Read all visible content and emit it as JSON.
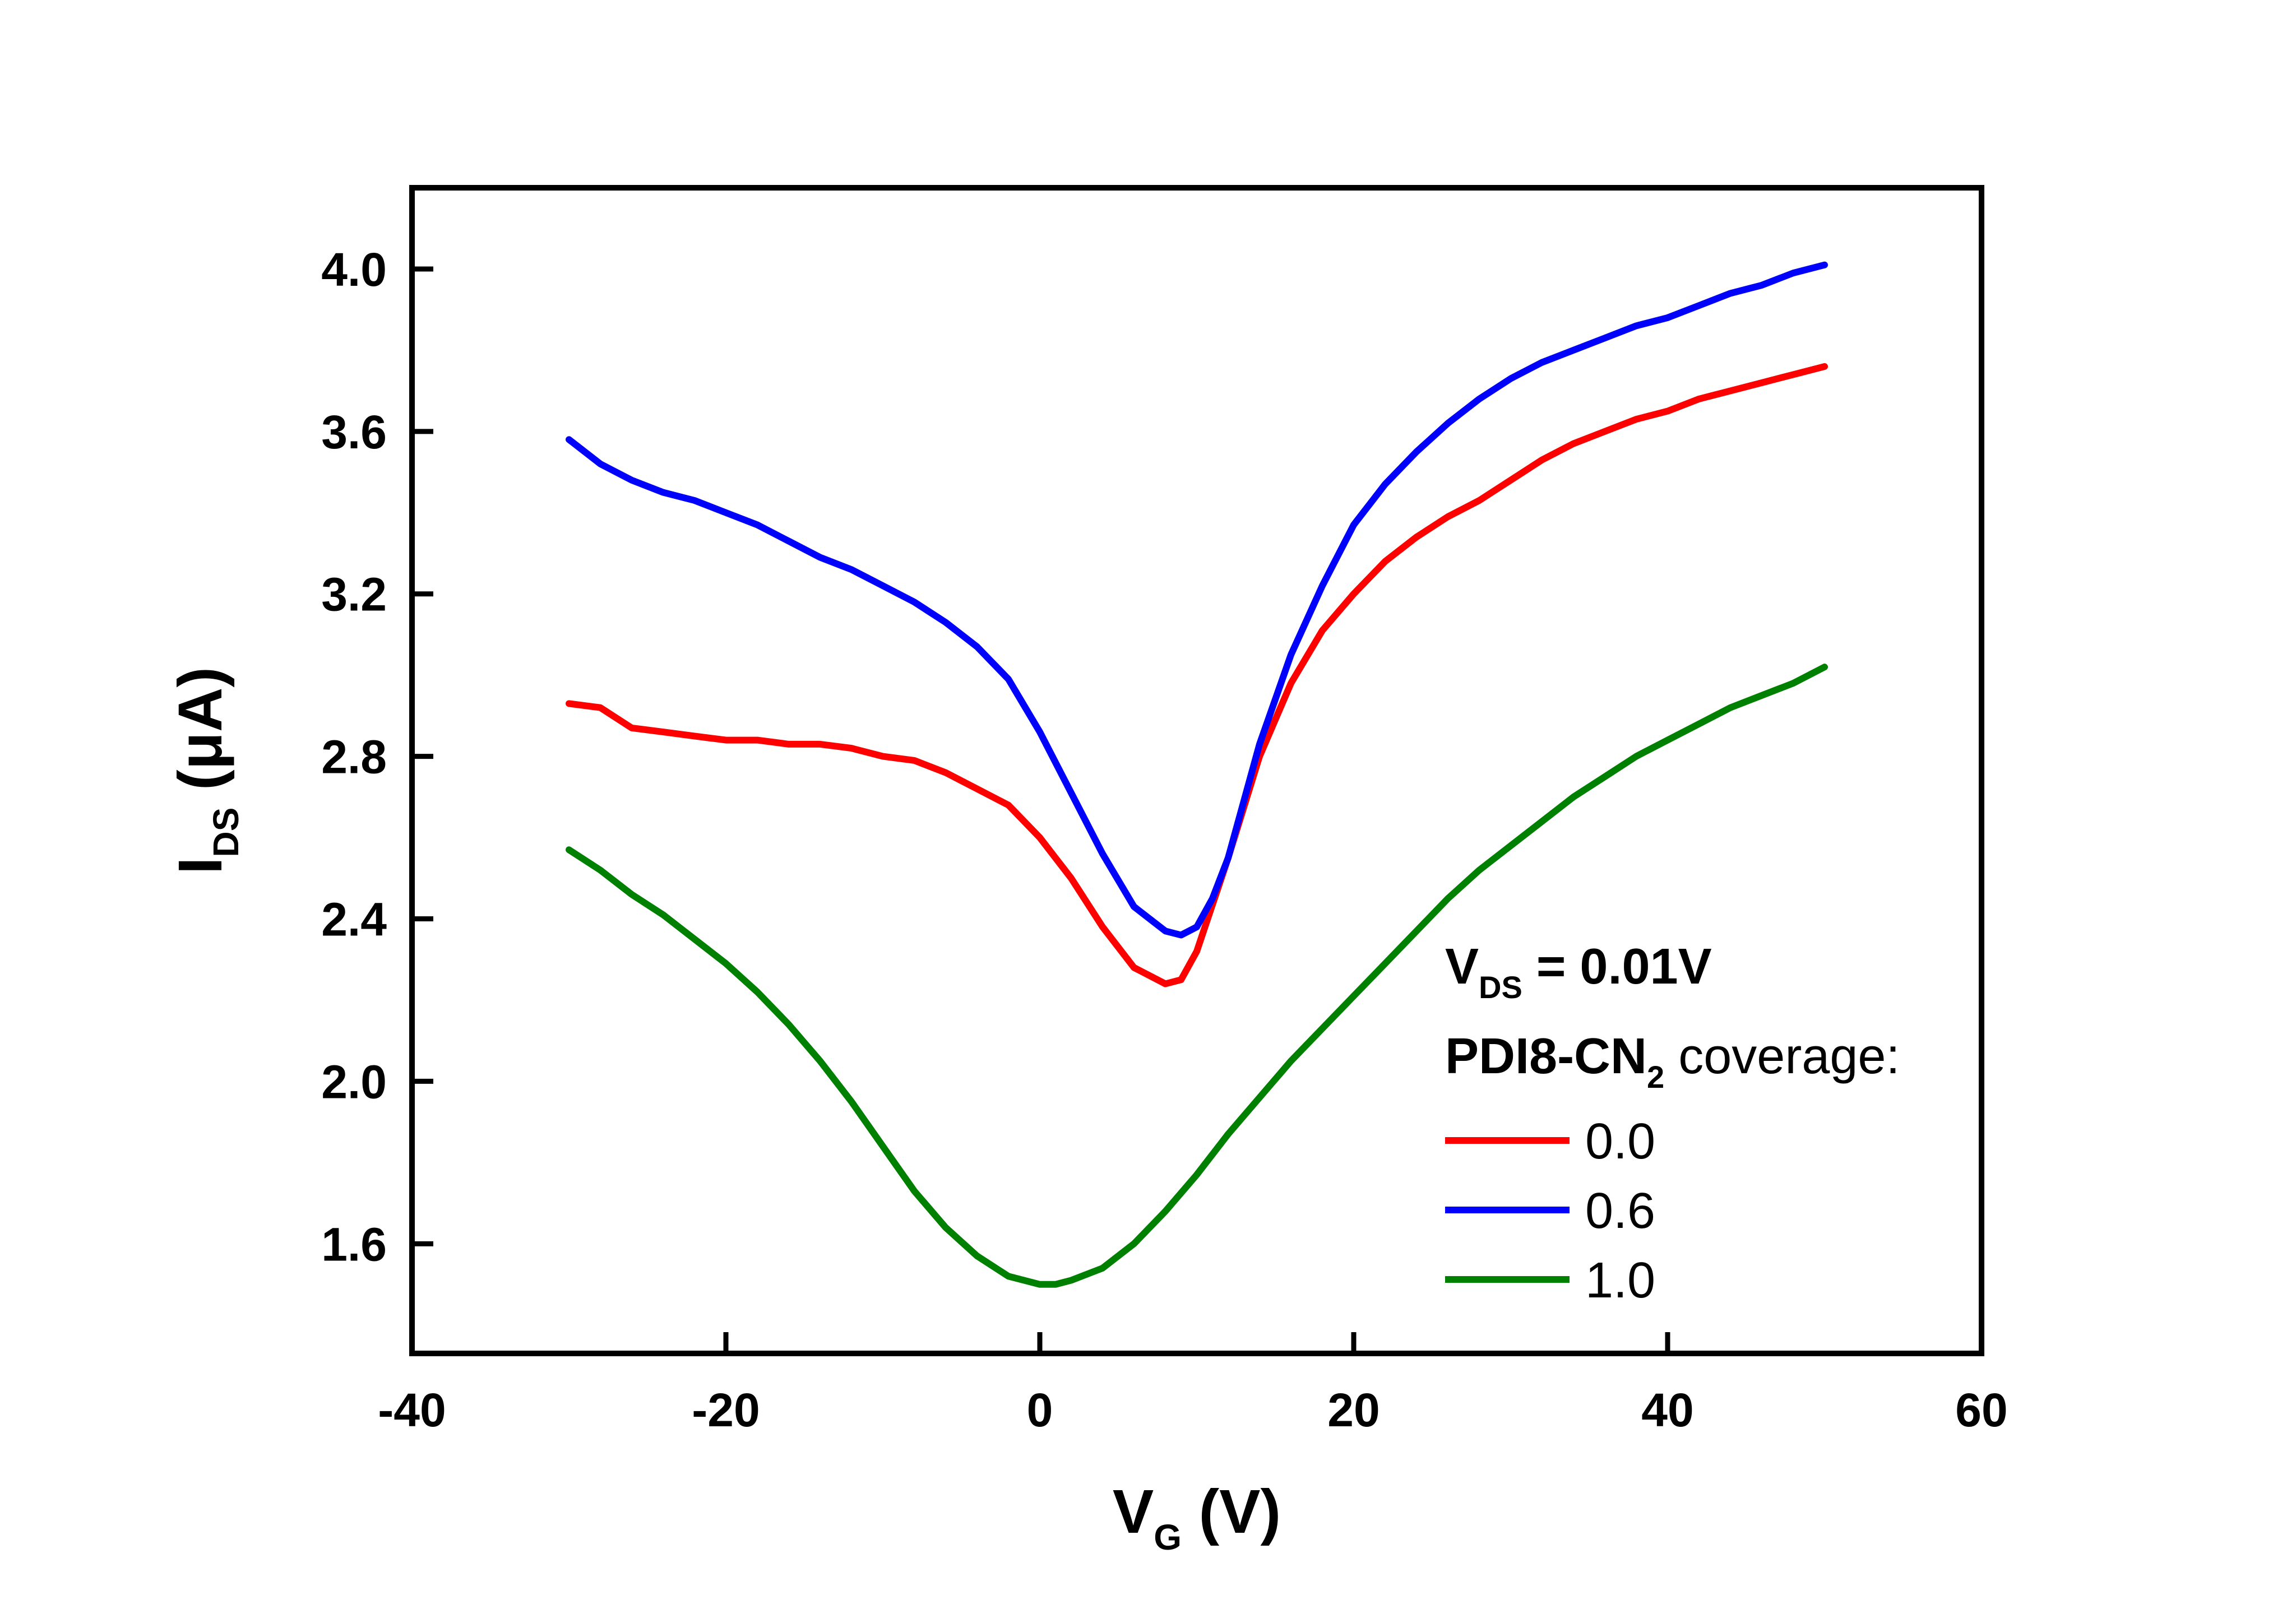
{
  "chart_data": {
    "type": "line",
    "xlabel": {
      "main": "V",
      "sub": "G",
      "unit": " (V)"
    },
    "ylabel": {
      "main": "I",
      "sub": "DS",
      "unit": " (μA)"
    },
    "xlim": [
      -40,
      60
    ],
    "ylim": [
      1.33,
      4.2
    ],
    "xticks": [
      -40,
      -20,
      0,
      20,
      40,
      60
    ],
    "xtick_labels": [
      "-40",
      "-20",
      "0",
      "20",
      "40",
      "60"
    ],
    "yticks": [
      1.6,
      2.0,
      2.4,
      2.8,
      3.2,
      3.6,
      4.0
    ],
    "ytick_labels": [
      "1.6",
      "2.0",
      "2.4",
      "2.8",
      "3.2",
      "3.6",
      "4.0"
    ],
    "grid": false,
    "legend_position": "bottom-right",
    "legend_header": {
      "line1_main": "V",
      "line1_sub": "DS",
      "line1_rest": " = 0.01V",
      "line2_bold": "PDI8-CN",
      "line2_sub": "2",
      "line2_rest": " coverage:"
    },
    "series": [
      {
        "name": "0.0",
        "color": "#ff0000",
        "x": [
          -30,
          -28,
          -26,
          -24,
          -22,
          -20,
          -18,
          -16,
          -14,
          -12,
          -10,
          -8,
          -6,
          -4,
          -2,
          0,
          2,
          4,
          6,
          8,
          9,
          10,
          12,
          14,
          16,
          18,
          20,
          22,
          24,
          26,
          28,
          30,
          32,
          34,
          36,
          38,
          40,
          42,
          44,
          46,
          48,
          50
        ],
        "y": [
          2.93,
          2.92,
          2.87,
          2.86,
          2.85,
          2.84,
          2.84,
          2.83,
          2.83,
          2.82,
          2.8,
          2.79,
          2.76,
          2.72,
          2.68,
          2.6,
          2.5,
          2.38,
          2.28,
          2.24,
          2.25,
          2.32,
          2.55,
          2.8,
          2.98,
          3.11,
          3.2,
          3.28,
          3.34,
          3.39,
          3.43,
          3.48,
          3.53,
          3.57,
          3.6,
          3.63,
          3.65,
          3.68,
          3.7,
          3.72,
          3.74,
          3.76
        ]
      },
      {
        "name": "0.6",
        "color": "#0000ff",
        "x": [
          -30,
          -28,
          -26,
          -24,
          -22,
          -20,
          -18,
          -16,
          -14,
          -12,
          -10,
          -8,
          -6,
          -4,
          -2,
          0,
          2,
          4,
          6,
          8,
          9,
          10,
          11,
          12,
          14,
          16,
          18,
          20,
          22,
          24,
          26,
          28,
          30,
          32,
          34,
          36,
          38,
          40,
          42,
          44,
          46,
          48,
          50
        ],
        "y": [
          3.58,
          3.52,
          3.48,
          3.45,
          3.43,
          3.4,
          3.37,
          3.33,
          3.29,
          3.26,
          3.22,
          3.18,
          3.13,
          3.07,
          2.99,
          2.86,
          2.71,
          2.56,
          2.43,
          2.37,
          2.36,
          2.38,
          2.45,
          2.55,
          2.83,
          3.05,
          3.22,
          3.37,
          3.47,
          3.55,
          3.62,
          3.68,
          3.73,
          3.77,
          3.8,
          3.83,
          3.86,
          3.88,
          3.91,
          3.94,
          3.96,
          3.99,
          4.01
        ]
      },
      {
        "name": "1.0",
        "color": "#008000",
        "x": [
          -30,
          -28,
          -26,
          -24,
          -22,
          -20,
          -18,
          -16,
          -14,
          -12,
          -10,
          -8,
          -6,
          -4,
          -2,
          0,
          1,
          2,
          4,
          6,
          8,
          10,
          12,
          14,
          16,
          18,
          20,
          22,
          24,
          26,
          28,
          30,
          32,
          34,
          36,
          38,
          40,
          42,
          44,
          46,
          48,
          50
        ],
        "y": [
          2.57,
          2.52,
          2.46,
          2.41,
          2.35,
          2.29,
          2.22,
          2.14,
          2.05,
          1.95,
          1.84,
          1.73,
          1.64,
          1.57,
          1.52,
          1.5,
          1.5,
          1.51,
          1.54,
          1.6,
          1.68,
          1.77,
          1.87,
          1.96,
          2.05,
          2.13,
          2.21,
          2.29,
          2.37,
          2.45,
          2.52,
          2.58,
          2.64,
          2.7,
          2.75,
          2.8,
          2.84,
          2.88,
          2.92,
          2.95,
          2.98,
          3.02
        ]
      }
    ]
  }
}
